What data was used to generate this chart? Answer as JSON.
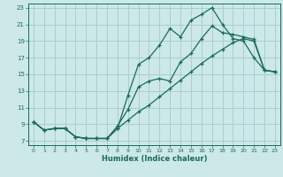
{
  "bg_color": "#cce8e8",
  "grid_color": "#aacece",
  "line_color": "#1a6b5a",
  "xlabel": "Humidex (Indice chaleur)",
  "xlim": [
    -0.5,
    23.5
  ],
  "ylim": [
    6.5,
    23.5
  ],
  "xticks": [
    0,
    1,
    2,
    3,
    4,
    5,
    6,
    7,
    8,
    9,
    10,
    11,
    12,
    13,
    14,
    15,
    16,
    17,
    18,
    19,
    20,
    21,
    22,
    23
  ],
  "yticks": [
    7,
    9,
    11,
    13,
    15,
    17,
    19,
    21,
    23
  ],
  "curve1_x": [
    0,
    1,
    2,
    3,
    4,
    5,
    6,
    7,
    8,
    9,
    10,
    11,
    12,
    13,
    14,
    15,
    16,
    17,
    18,
    19,
    20,
    21,
    22,
    23
  ],
  "curve1_y": [
    9.3,
    8.3,
    8.5,
    8.5,
    7.5,
    7.3,
    7.3,
    7.3,
    8.5,
    12.5,
    16.2,
    17.0,
    18.5,
    20.5,
    19.5,
    21.5,
    22.2,
    23.0,
    21.0,
    19.3,
    19.0,
    17.0,
    15.5,
    15.3
  ],
  "curve2_x": [
    0,
    1,
    2,
    3,
    4,
    5,
    6,
    7,
    8,
    9,
    10,
    11,
    12,
    13,
    14,
    15,
    16,
    17,
    18,
    19,
    20,
    21,
    22,
    23
  ],
  "curve2_y": [
    9.3,
    8.3,
    8.5,
    8.5,
    7.5,
    7.3,
    7.3,
    7.3,
    8.5,
    9.5,
    10.5,
    11.3,
    12.3,
    13.3,
    14.3,
    15.3,
    16.3,
    17.2,
    18.0,
    18.8,
    19.3,
    19.0,
    15.5,
    15.3
  ],
  "curve3_x": [
    0,
    1,
    2,
    3,
    4,
    5,
    6,
    7,
    8,
    9,
    10,
    11,
    12,
    13,
    14,
    15,
    16,
    17,
    18,
    19,
    20,
    21,
    22,
    23
  ],
  "curve3_y": [
    9.3,
    8.3,
    8.5,
    8.5,
    7.5,
    7.3,
    7.3,
    7.3,
    8.8,
    10.8,
    13.5,
    14.2,
    14.5,
    14.2,
    16.5,
    17.5,
    19.3,
    20.8,
    20.0,
    19.8,
    19.5,
    19.2,
    15.5,
    15.3
  ]
}
